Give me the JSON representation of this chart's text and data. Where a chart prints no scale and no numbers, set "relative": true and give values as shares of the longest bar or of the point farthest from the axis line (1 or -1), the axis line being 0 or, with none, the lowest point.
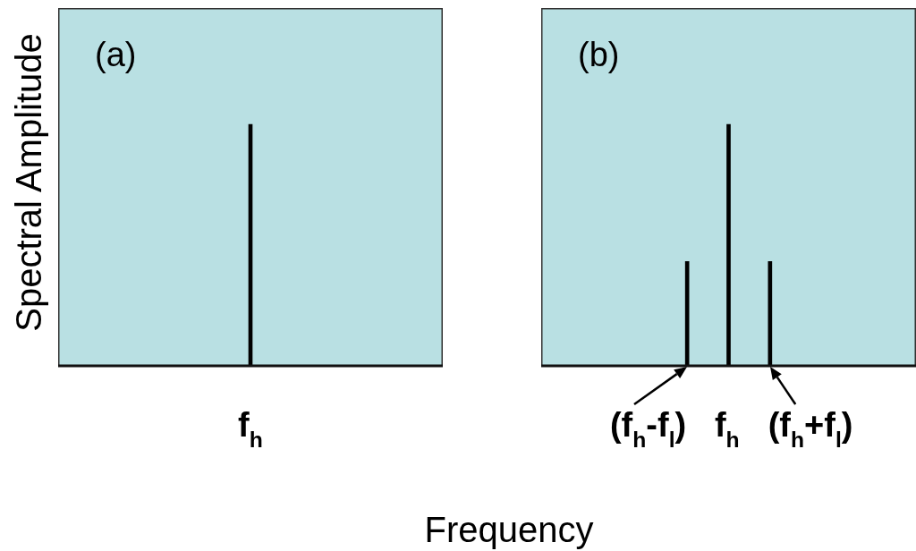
{
  "chart_data": [
    {
      "type": "bar",
      "title": "(a)",
      "xlabel": "Frequency",
      "ylabel": "Spectral Amplitude",
      "categories": [
        "f$_{h}$"
      ],
      "values": [
        1
      ],
      "color": "#000000",
      "relative": true
    },
    {
      "type": "bar",
      "title": "(b)",
      "categories": [
        null,
        null,
        null,
        "(f$_{h}$-f$_{l}$)",
        "f$_{h}$",
        "(f$_{h}$+f$_{l}$)",
        null,
        null,
        null
      ],
      "values": [
        null,
        null,
        null,
        0.43,
        1,
        0.43,
        null,
        null,
        null
      ],
      "color": "#000000",
      "relative": true
    }
  ]
}
